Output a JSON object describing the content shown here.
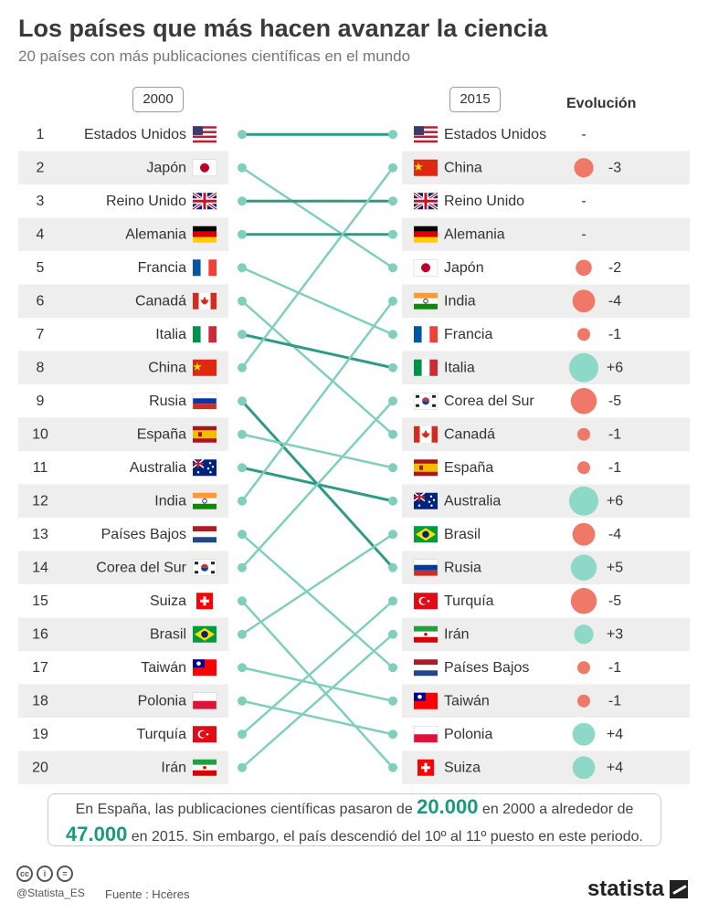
{
  "header": {
    "title": "Los países que más hacen avanzar la ciencia",
    "subtitle": "20 países con más publicaciones científicas en el mundo"
  },
  "columns": {
    "year_left": "2000",
    "year_right": "2015",
    "evolution": "Evolución"
  },
  "chart_data": {
    "type": "slope",
    "ranks": [
      1,
      2,
      3,
      4,
      5,
      6,
      7,
      8,
      9,
      10,
      11,
      12,
      13,
      14,
      15,
      16,
      17,
      18,
      19,
      20
    ],
    "ranking_2000": [
      "Estados Unidos",
      "Japón",
      "Reino Unido",
      "Alemania",
      "Francia",
      "Canadá",
      "Italia",
      "China",
      "Rusia",
      "España",
      "Australia",
      "India",
      "Países Bajos",
      "Corea del Sur",
      "Suiza",
      "Brasil",
      "Taiwán",
      "Polonia",
      "Turquía",
      "Irán"
    ],
    "ranking_2015": [
      "Estados Unidos",
      "China",
      "Reino Unido",
      "Alemania",
      "Japón",
      "India",
      "Francia",
      "Italia",
      "Corea del Sur",
      "Canadá",
      "España",
      "Australia",
      "Brasil",
      "Rusia",
      "Turquía",
      "Irán",
      "Países Bajos",
      "Taiwán",
      "Polonia",
      "Suiza"
    ],
    "evolution": [
      "-",
      "-3",
      "-",
      "-",
      "-2",
      "-4",
      "-1",
      "+6",
      "-5",
      "-1",
      "-1",
      "+6",
      "-4",
      "+5",
      "-5",
      "+3",
      "-1",
      "-1",
      "+4",
      "+4"
    ],
    "evolution_values": [
      0,
      -3,
      0,
      0,
      -2,
      -4,
      -1,
      6,
      -5,
      -1,
      -1,
      6,
      -4,
      5,
      -5,
      3,
      -1,
      -1,
      4,
      4
    ]
  },
  "colors": {
    "up": "#8ed8c8",
    "down": "#f07868",
    "line": "#7fcfbb",
    "line_dark": "#2f9a86",
    "stripe": "#eeeeee"
  },
  "note": {
    "part1": "En España, las publicaciones científicas pasaron de ",
    "value1": "20.000",
    "part2": " en 2000 a alrededor de ",
    "value2": "47.000",
    "part3": " en 2015. Sin embargo, el país descendió del 10º al 11º puesto en este periodo."
  },
  "footer": {
    "handle": "@Statista_ES",
    "source": "Fuente : Hcères",
    "brand": "statista"
  }
}
